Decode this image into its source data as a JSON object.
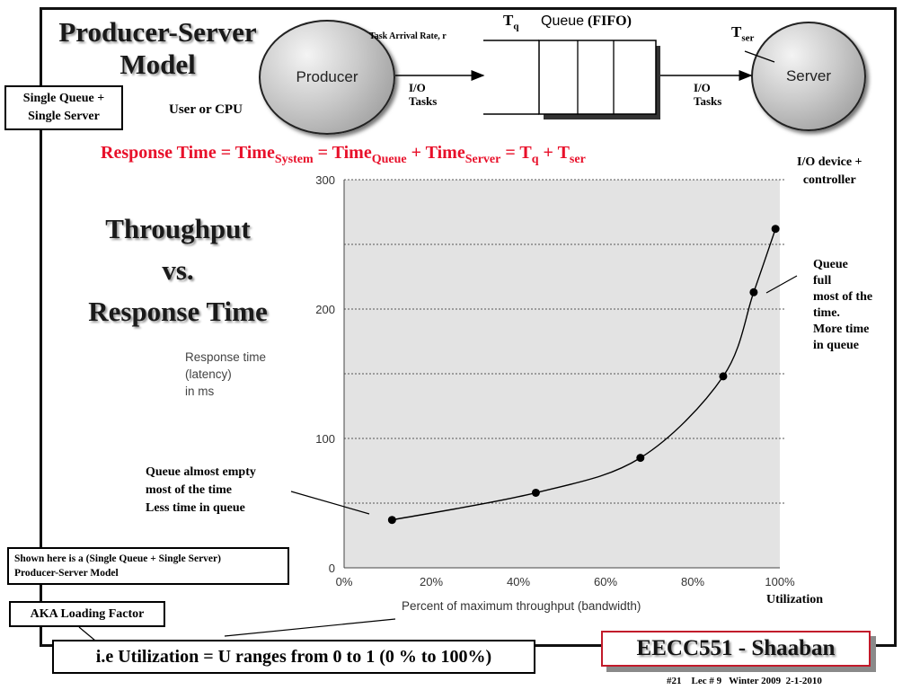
{
  "slide": {
    "title_line1": "Producer-Server",
    "title_line2": "Model",
    "single_queue_line1": "Single Queue +",
    "single_queue_line2": "Single Server",
    "user_cpu": "User or CPU",
    "producer": "Producer",
    "server": "Server",
    "task_arrival": "Task Arrival Rate, r",
    "tq_main": "T",
    "tq_sub": "q",
    "queue_label": "Queue",
    "fifo": "(FIFO)",
    "tser_main": "T",
    "tser_sub": "ser",
    "io_tasks_left_1": "I/O",
    "io_tasks_left_2": "Tasks",
    "io_tasks_right_1": "I/O",
    "io_tasks_right_2": "Tasks",
    "io_device_1": "I/O device +",
    "io_device_2": "controller",
    "resp_eq": {
      "p1": "Response Time  =  Time",
      "s1": "System",
      "p2": " = Time",
      "s2": "Queue",
      "p3": " +  Time",
      "s3": "Server",
      "p4": " =  T",
      "s4": "q",
      "p5": " + T",
      "s5": "ser"
    },
    "tp_line1": "Throughput",
    "tp_line2": "vs.",
    "tp_line3": "Response Time",
    "queue_full": [
      "Queue",
      "full",
      "most of the",
      "time.",
      "More time",
      "in queue"
    ],
    "queue_empty": [
      "Queue almost empty",
      "most of the time",
      "Less time in queue"
    ],
    "shown_here_1": "Shown here is a (Single Queue + Single Server)",
    "shown_here_2": "Producer-Server Model",
    "aka": "AKA Loading Factor",
    "utilization_label": "Utilization",
    "ie_util": "i.e Utilization = U  ranges from 0 to 1  (0 % to 100%)",
    "course": "EECC551 - Shaaban",
    "footer": "#21    Lec # 9   Winter 2009  2-1-2010"
  },
  "chart_data": {
    "type": "line",
    "x": [
      11,
      44,
      68,
      87,
      94,
      99
    ],
    "y": [
      37,
      58,
      85,
      148,
      213,
      262
    ],
    "xlabel": "Percent of maximum throughput (bandwidth)",
    "ylabel_lines": [
      "Response time",
      "(latency)",
      "in ms"
    ],
    "xlim": [
      0,
      100
    ],
    "ylim": [
      0,
      300
    ],
    "x_ticks": [
      "0%",
      "20%",
      "40%",
      "60%",
      "80%",
      "100%"
    ],
    "y_ticks": [
      "0",
      "100",
      "200",
      "300"
    ],
    "gridlines_y": [
      50,
      100,
      150,
      200,
      250,
      300
    ],
    "grid": true,
    "background": "#e3e3e3",
    "line_color": "#000000"
  }
}
